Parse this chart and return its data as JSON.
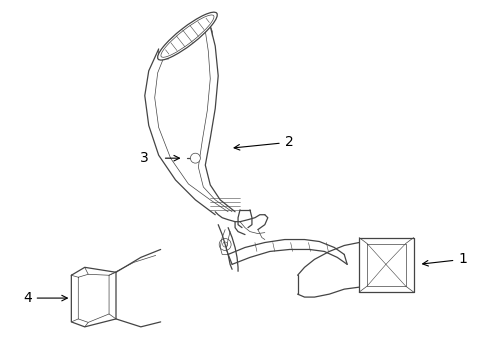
{
  "background_color": "#ffffff",
  "line_color": "#444444",
  "label_color": "#000000",
  "figsize": [
    4.89,
    3.6
  ],
  "dpi": 100,
  "lw_main": 0.9,
  "lw_detail": 0.5,
  "lw_thin": 0.4
}
